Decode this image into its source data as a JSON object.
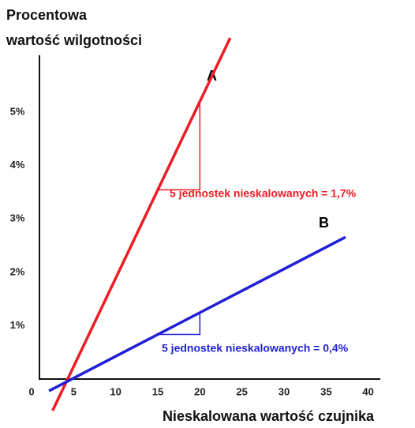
{
  "chart_data": {
    "type": "line",
    "y_label": [
      "Procentowa",
      "wartość wilgotności"
    ],
    "x_label": "Nieskalowana wartość czujnika",
    "xlim": [
      0,
      45
    ],
    "ylim": [
      -0.9,
      6.5
    ],
    "xticks": [
      0,
      5,
      10,
      15,
      20,
      25,
      30,
      35,
      40
    ],
    "yticks": [
      {
        "value": 1,
        "label": "1%"
      },
      {
        "value": 2,
        "label": "2%"
      },
      {
        "value": 3,
        "label": "3%"
      },
      {
        "value": 4,
        "label": "4%"
      },
      {
        "value": 5,
        "label": "5%"
      }
    ],
    "series": [
      {
        "name": "A",
        "color": "#ee1c24",
        "x": [
          2.5,
          23.6
        ],
        "values": [
          -0.59,
          6.39
        ]
      },
      {
        "name": "B",
        "color": "#1f1fd6",
        "x": [
          2.07,
          37.3
        ],
        "values": [
          -0.22,
          2.66
        ]
      }
    ],
    "annotations": [
      "5 jednostek nieskalowanych = 1,7%",
      "5 jednostek nieskalowanych = 0,4%"
    ]
  }
}
